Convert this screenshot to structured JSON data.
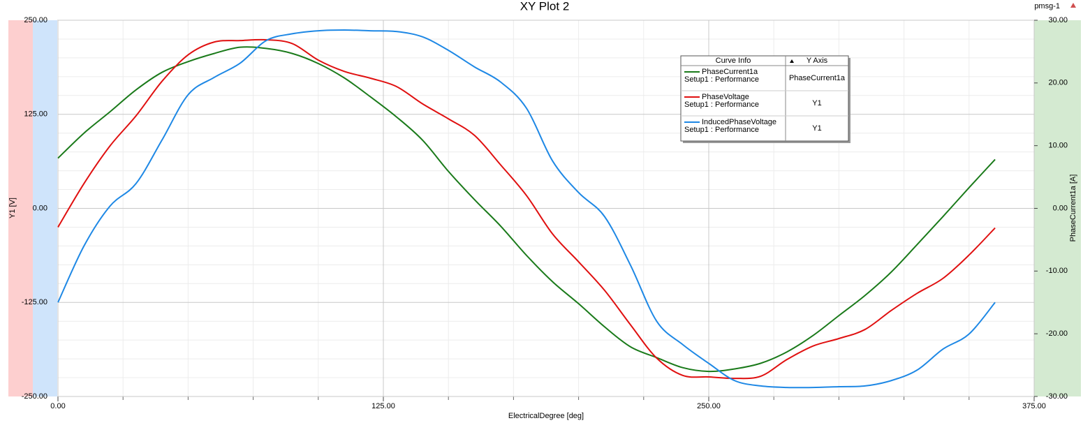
{
  "chart_data": {
    "type": "line",
    "title": "XY Plot 2",
    "design_name": "pmsg-1",
    "x_label": "ElectricalDegree [deg]",
    "y_label": "Y1 [V]",
    "y2_label": "PhaseCurrent1a [A]",
    "x": [
      0,
      10,
      20,
      30,
      40,
      50,
      60,
      70,
      80,
      90,
      100,
      110,
      120,
      130,
      140,
      150,
      160,
      170,
      180,
      190,
      200,
      210,
      220,
      230,
      240,
      250,
      260,
      270,
      280,
      290,
      300,
      310,
      320,
      330,
      340,
      350,
      360
    ],
    "series": [
      {
        "name": "PhaseCurrent1a",
        "color": "#1a7a1a",
        "axis": "y2",
        "values": [
          8.0,
          12.0,
          15.4,
          18.9,
          21.7,
          23.4,
          24.7,
          25.7,
          25.5,
          24.7,
          23.1,
          20.8,
          17.8,
          14.6,
          10.9,
          5.9,
          1.4,
          -2.8,
          -7.5,
          -11.7,
          -15.2,
          -18.9,
          -22.1,
          -23.8,
          -25.4,
          -26.0,
          -25.6,
          -24.7,
          -22.9,
          -20.3,
          -17.1,
          -13.9,
          -10.2,
          -5.8,
          -1.3,
          3.3,
          7.8
        ]
      },
      {
        "name": "PhaseVoltage",
        "color": "#e01010",
        "axis": "y",
        "values": [
          -25,
          33,
          83,
          123,
          169,
          204,
          221,
          223,
          224,
          219,
          197,
          182,
          173,
          162,
          139,
          119,
          97,
          58,
          17,
          -34,
          -71,
          -109,
          -155,
          -199,
          -222,
          -224,
          -226,
          -223,
          -201,
          -183,
          -173,
          -161,
          -136,
          -113,
          -93,
          -62,
          -26
        ]
      },
      {
        "name": "InducedPhaseVoltage",
        "color": "#1e88e5",
        "axis": "y",
        "values": [
          -125,
          -50,
          3,
          33,
          91,
          151,
          174,
          193,
          223,
          232,
          236,
          237,
          236,
          235,
          228,
          210,
          188,
          168,
          133,
          63,
          21,
          -11,
          -76,
          -150,
          -181,
          -206,
          -229,
          -236,
          -238,
          -238,
          -237,
          -236,
          -229,
          -215,
          -187,
          -167,
          -125
        ]
      }
    ],
    "legend": {
      "headers": [
        "Curve Info",
        "Y Axis"
      ],
      "rows": [
        {
          "source": "Setup1 : Performance",
          "axis": "PhaseCurrent1a"
        },
        {
          "source": "Setup1 : Performance",
          "axis": "Y1"
        },
        {
          "source": "Setup1 : Performance",
          "axis": "Y1"
        }
      ]
    },
    "xlim": [
      0,
      375
    ],
    "xticks": [
      {
        "value": 0,
        "label": "0.00"
      },
      {
        "value": 125,
        "label": "125.00"
      },
      {
        "value": 250,
        "label": "250.00"
      },
      {
        "value": 375,
        "label": "375.00"
      }
    ],
    "xminorticks": [
      25,
      50,
      75,
      100,
      150,
      175,
      200,
      225,
      275,
      300,
      325,
      350
    ],
    "ylim": [
      -250,
      250
    ],
    "yticks": [
      {
        "value": 250,
        "label": "250.00"
      },
      {
        "value": 125,
        "label": "125.00"
      },
      {
        "value": 0,
        "label": "0.00"
      },
      {
        "value": -125,
        "label": "-125.00"
      },
      {
        "value": -250,
        "label": "-250.00"
      }
    ],
    "yminorticks": [
      225,
      200,
      175,
      150,
      100,
      75,
      50,
      25,
      -25,
      -50,
      -75,
      -100,
      -150,
      -175,
      -200,
      -225
    ],
    "y2lim": [
      -30,
      30
    ],
    "y2ticks": [
      {
        "value": 30,
        "label": "30.00"
      },
      {
        "value": 20,
        "label": "20.00"
      },
      {
        "value": 10,
        "label": "10.00"
      },
      {
        "value": 0,
        "label": "0.00"
      },
      {
        "value": -10,
        "label": "-10.00"
      },
      {
        "value": -20,
        "label": "-20.00"
      },
      {
        "value": -30,
        "label": "-30.00"
      }
    ],
    "grid": true
  }
}
